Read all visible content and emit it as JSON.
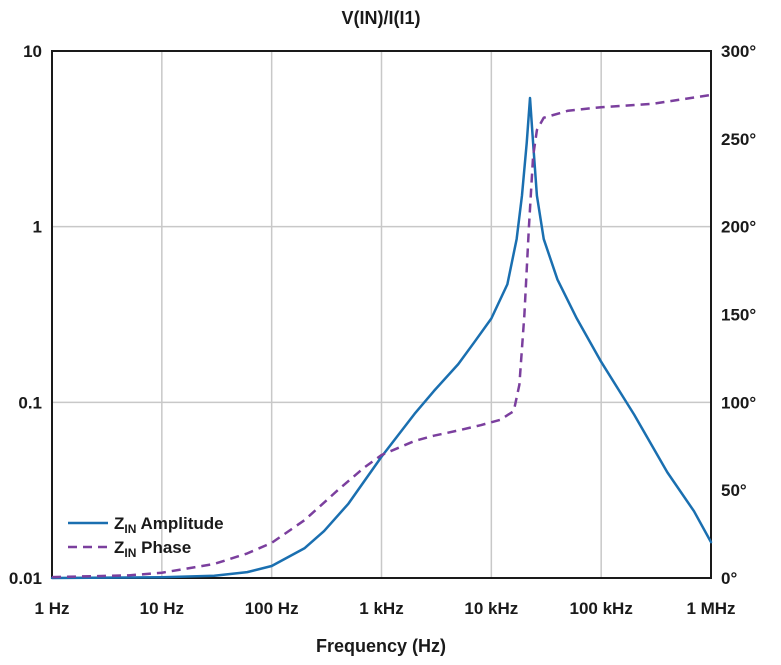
{
  "chart_data": {
    "type": "line",
    "title": "V(IN)/I(I1)",
    "xlabel": "Frequency (Hz)",
    "x_scale": "log",
    "xlim": [
      1,
      1000000
    ],
    "x_ticks": [
      1,
      10,
      100,
      1000,
      10000,
      100000,
      1000000
    ],
    "x_tick_labels": [
      "1 Hz",
      "10 Hz",
      "100 Hz",
      "1 kHz",
      "10 kHz",
      "100 kHz",
      "1 MHz"
    ],
    "y_left": {
      "scale": "log",
      "lim": [
        0.01,
        10
      ],
      "ticks": [
        0.01,
        0.1,
        1,
        10
      ],
      "tick_labels": [
        "0.01",
        "0.1",
        "1",
        "10"
      ]
    },
    "y_right": {
      "scale": "linear",
      "lim": [
        0,
        300
      ],
      "ticks": [
        0,
        50,
        100,
        150,
        200,
        250,
        300
      ],
      "tick_labels": [
        "0°",
        "50°",
        "100°",
        "150°",
        "200°",
        "250°",
        "300°"
      ]
    },
    "grid": true,
    "legend_position": "bottom-left",
    "series": [
      {
        "name": "ZIN Amplitude",
        "name_main": "Z",
        "name_sub": "IN",
        "name_rest": " Amplitude",
        "axis": "left",
        "color": "#1a6fb0",
        "style": "solid",
        "points": [
          [
            1,
            0.01
          ],
          [
            10,
            0.0101
          ],
          [
            30,
            0.0103
          ],
          [
            60,
            0.0108
          ],
          [
            100,
            0.0117
          ],
          [
            200,
            0.0148
          ],
          [
            300,
            0.0185
          ],
          [
            500,
            0.0265
          ],
          [
            1000,
            0.049
          ],
          [
            2000,
            0.086
          ],
          [
            3000,
            0.116
          ],
          [
            5000,
            0.165
          ],
          [
            7000,
            0.22
          ],
          [
            10000,
            0.3
          ],
          [
            14000,
            0.47
          ],
          [
            17000,
            0.85
          ],
          [
            19000,
            1.5
          ],
          [
            21000,
            3.0
          ],
          [
            22500,
            5.4
          ],
          [
            24000,
            3.0
          ],
          [
            26000,
            1.5
          ],
          [
            30000,
            0.85
          ],
          [
            40000,
            0.5
          ],
          [
            60000,
            0.3
          ],
          [
            100000,
            0.17
          ],
          [
            200000,
            0.085
          ],
          [
            400000,
            0.04
          ],
          [
            700000,
            0.024
          ],
          [
            1000000,
            0.016
          ]
        ]
      },
      {
        "name": "ZIN Phase",
        "name_main": "Z",
        "name_sub": "IN",
        "name_rest": " Phase",
        "axis": "right",
        "color": "#7b3f9e",
        "style": "dashed",
        "points": [
          [
            1,
            0.5
          ],
          [
            5,
            1.5
          ],
          [
            10,
            3
          ],
          [
            30,
            8
          ],
          [
            60,
            14
          ],
          [
            100,
            20
          ],
          [
            200,
            33
          ],
          [
            400,
            50
          ],
          [
            700,
            63
          ],
          [
            1000,
            70
          ],
          [
            2000,
            78
          ],
          [
            3000,
            81
          ],
          [
            5000,
            84
          ],
          [
            8000,
            87
          ],
          [
            12000,
            90
          ],
          [
            16000,
            95
          ],
          [
            18000,
            110
          ],
          [
            20000,
            150
          ],
          [
            22000,
            200
          ],
          [
            24000,
            240
          ],
          [
            26000,
            255
          ],
          [
            30000,
            262
          ],
          [
            50000,
            266
          ],
          [
            100000,
            268
          ],
          [
            300000,
            270
          ],
          [
            1000000,
            275
          ]
        ]
      }
    ]
  }
}
